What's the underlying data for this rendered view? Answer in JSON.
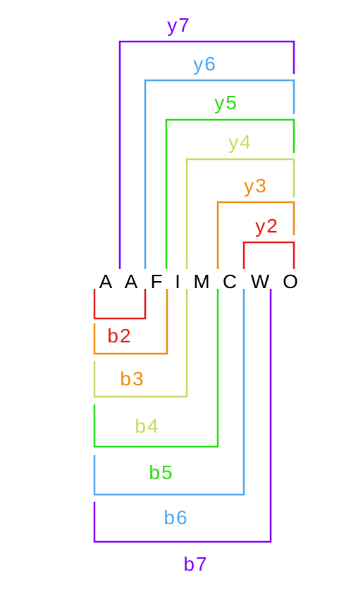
{
  "sequence": [
    "A",
    "A",
    "F",
    "I",
    "M",
    "C",
    "W",
    "O"
  ],
  "y_ions": [
    {
      "label": "y7",
      "color": "#7f00ff"
    },
    {
      "label": "y6",
      "color": "#4aa6f0"
    },
    {
      "label": "y5",
      "color": "#22dd11"
    },
    {
      "label": "y4",
      "color": "#c8d864"
    },
    {
      "label": "y3",
      "color": "#f08a10"
    },
    {
      "label": "y2",
      "color": "#e61515"
    }
  ],
  "b_ions": [
    {
      "label": "b2",
      "color": "#e61515"
    },
    {
      "label": "b3",
      "color": "#f08a10"
    },
    {
      "label": "b4",
      "color": "#c8d864"
    },
    {
      "label": "b5",
      "color": "#22dd11"
    },
    {
      "label": "b6",
      "color": "#4aa6f0"
    },
    {
      "label": "b7",
      "color": "#7f00ff"
    }
  ]
}
